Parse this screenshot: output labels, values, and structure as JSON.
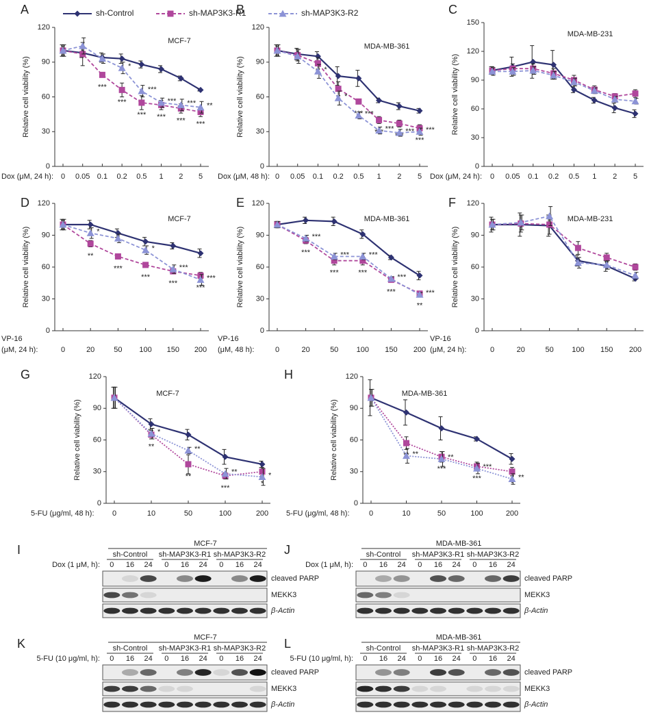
{
  "chart_data": [
    {
      "type": "line",
      "panel": "A",
      "title": "MCF-7",
      "xlabel": [
        "Dox (μM, 24 h):"
      ],
      "ylabel": "Relative cell viability (%)",
      "legend": "top",
      "categories": [
        "0",
        "0.05",
        "0.1",
        "0.2",
        "0.5",
        "1",
        "2",
        "5"
      ],
      "ylim": [
        0,
        120
      ],
      "yticks": [
        0,
        30,
        60,
        90,
        120
      ],
      "series": [
        {
          "name": "sh-Control",
          "color": "#2e3272",
          "marker": "diamond",
          "linestyle": "solid",
          "values": [
            100,
            98,
            94,
            93,
            88,
            84,
            76,
            66
          ],
          "errors": [
            5,
            4,
            4,
            4,
            3,
            3,
            2,
            1
          ]
        },
        {
          "name": "sh-MAP3K3-R1",
          "color": "#b0479c",
          "marker": "square",
          "linestyle": "dashed",
          "values": [
            100,
            97,
            79,
            66,
            55,
            53,
            50,
            47
          ],
          "errors": [
            4,
            10,
            2,
            6,
            6,
            4,
            4,
            4
          ],
          "annotations": [
            null,
            null,
            "***",
            "***",
            "***",
            "***",
            "***",
            "***"
          ]
        },
        {
          "name": "sh-MAP3K3-R2",
          "color": "#8c93d6",
          "marker": "triangle",
          "linestyle": "dashed",
          "values": [
            100,
            104,
            93,
            85,
            65,
            55,
            53,
            51
          ],
          "errors": [
            5,
            7,
            4,
            5,
            5,
            4,
            5,
            5
          ],
          "annotations": [
            null,
            null,
            null,
            "*",
            "***",
            "***",
            "***",
            "**"
          ]
        }
      ]
    },
    {
      "type": "line",
      "panel": "B",
      "title": "MDA-MB-361",
      "xlabel": [
        "Dox (μM, 48 h):"
      ],
      "ylabel": "Relative cell viability (%)",
      "categories": [
        "0",
        "0.05",
        "0.1",
        "0.2",
        "0.5",
        "1",
        "2",
        "5"
      ],
      "ylim": [
        0,
        120
      ],
      "yticks": [
        0,
        30,
        60,
        90,
        120
      ],
      "series": [
        {
          "color": "#2e3272",
          "marker": "diamond",
          "linestyle": "solid",
          "values": [
            100,
            97,
            95,
            78,
            76,
            57,
            52,
            48
          ],
          "errors": [
            5,
            5,
            4,
            8,
            7,
            2,
            3,
            2
          ]
        },
        {
          "color": "#b0479c",
          "marker": "square",
          "linestyle": "dashed",
          "values": [
            100,
            96,
            89,
            67,
            56,
            40,
            37,
            33
          ],
          "errors": [
            4,
            5,
            5,
            6,
            2,
            3,
            3,
            3
          ],
          "annotations": [
            null,
            null,
            null,
            "*",
            "***",
            "***",
            "***",
            "***"
          ]
        },
        {
          "color": "#8c93d6",
          "marker": "triangle",
          "linestyle": "dashed",
          "values": [
            100,
            95,
            82,
            59,
            44,
            31,
            29,
            30
          ],
          "errors": [
            5,
            6,
            6,
            6,
            3,
            3,
            3,
            3
          ],
          "annotations": [
            null,
            null,
            "*",
            "*",
            "***",
            "***",
            "***",
            "***"
          ]
        }
      ]
    },
    {
      "type": "line",
      "panel": "C",
      "title": "MDA-MB-231",
      "xlabel": [
        "Dox (μM, 24 h):"
      ],
      "ylabel": "Relative cell viability (%)",
      "categories": [
        "0",
        "0.05",
        "0.1",
        "0.2",
        "0.5",
        "1",
        "2",
        "5"
      ],
      "ylim": [
        0,
        150
      ],
      "yticks": [
        0,
        30,
        60,
        90,
        120,
        150
      ],
      "series": [
        {
          "color": "#2e3272",
          "marker": "diamond",
          "linestyle": "solid",
          "values": [
            100,
            104,
            109,
            106,
            80,
            69,
            61,
            55
          ],
          "errors": [
            4,
            10,
            17,
            15,
            3,
            3,
            5,
            4
          ]
        },
        {
          "color": "#b0479c",
          "marker": "square",
          "linestyle": "dashed",
          "values": [
            100,
            102,
            102,
            97,
            90,
            80,
            73,
            76
          ],
          "errors": [
            4,
            5,
            5,
            5,
            5,
            4,
            3,
            4
          ]
        },
        {
          "color": "#8c93d6",
          "marker": "triangle",
          "linestyle": "dashed",
          "values": [
            99,
            99,
            100,
            95,
            88,
            79,
            70,
            68
          ],
          "errors": [
            4,
            4,
            4,
            4,
            4,
            3,
            3,
            3
          ]
        }
      ]
    },
    {
      "type": "line",
      "panel": "D",
      "title": "MCF-7",
      "xlabel": [
        "VP-16",
        "(μM, 24 h):"
      ],
      "ylabel": "Relative cell viability (%)",
      "categories": [
        "0",
        "20",
        "50",
        "100",
        "150",
        "200"
      ],
      "ylim": [
        0,
        120
      ],
      "yticks": [
        0,
        30,
        60,
        90,
        120
      ],
      "series": [
        {
          "color": "#2e3272",
          "marker": "diamond",
          "linestyle": "solid",
          "values": [
            100,
            100,
            92,
            84,
            80,
            73
          ],
          "errors": [
            5,
            4,
            4,
            4,
            3,
            4
          ]
        },
        {
          "color": "#b0479c",
          "marker": "square",
          "linestyle": "dashed",
          "values": [
            100,
            82,
            70,
            62,
            56,
            52
          ],
          "errors": [
            4,
            3,
            2,
            2,
            2,
            3
          ],
          "annotations": [
            null,
            "**",
            "***",
            "***",
            "***",
            "***"
          ]
        },
        {
          "color": "#8c93d6",
          "marker": "triangle",
          "linestyle": "dashed",
          "values": [
            100,
            92,
            87,
            76,
            58,
            48
          ],
          "errors": [
            5,
            5,
            4,
            4,
            4,
            5
          ],
          "annotations": [
            null,
            "*",
            null,
            "*",
            "***",
            "***"
          ]
        }
      ]
    },
    {
      "type": "line",
      "panel": "E",
      "title": "MDA-MB-361",
      "xlabel": [
        "VP-16",
        "(μM, 48 h):"
      ],
      "ylabel": "Relative cell viability (%)",
      "categories": [
        "0",
        "20",
        "50",
        "100",
        "150",
        "200"
      ],
      "ylim": [
        0,
        120
      ],
      "yticks": [
        0,
        30,
        60,
        90,
        120
      ],
      "series": [
        {
          "color": "#2e3272",
          "marker": "diamond",
          "linestyle": "solid",
          "values": [
            100,
            104,
            103,
            91,
            69,
            52
          ],
          "errors": [
            3,
            3,
            4,
            4,
            2,
            4
          ]
        },
        {
          "color": "#b0479c",
          "marker": "square",
          "linestyle": "dashed",
          "values": [
            100,
            85,
            66,
            66,
            48,
            35
          ],
          "errors": [
            3,
            3,
            4,
            4,
            2,
            2
          ],
          "annotations": [
            null,
            "***",
            "***",
            "***",
            "***",
            "**"
          ]
        },
        {
          "color": "#8c93d6",
          "marker": "triangle",
          "linestyle": "dashed",
          "values": [
            100,
            87,
            70,
            70,
            49,
            34
          ],
          "errors": [
            3,
            3,
            3,
            3,
            2,
            2
          ],
          "annotations": [
            null,
            "***",
            "***",
            "***",
            "***",
            "***"
          ]
        }
      ]
    },
    {
      "type": "line",
      "panel": "F",
      "title": "MDA-MB-231",
      "xlabel": [
        "VP-16",
        "(μM, 24 h):"
      ],
      "ylabel": "Relative cell viability (%)",
      "categories": [
        "0",
        "20",
        "50",
        "100",
        "150",
        "200"
      ],
      "ylim": [
        0,
        120
      ],
      "yticks": [
        0,
        30,
        60,
        90,
        120
      ],
      "series": [
        {
          "color": "#2e3272",
          "marker": "diamond",
          "linestyle": "solid",
          "values": [
            100,
            100,
            99,
            66,
            61,
            49
          ],
          "errors": [
            7,
            11,
            10,
            5,
            5,
            2
          ]
        },
        {
          "color": "#b0479c",
          "marker": "square",
          "linestyle": "dashed",
          "values": [
            100,
            101,
            100,
            78,
            69,
            60
          ],
          "errors": [
            5,
            8,
            9,
            6,
            4,
            3
          ]
        },
        {
          "color": "#8c93d6",
          "marker": "triangle",
          "linestyle": "dashed",
          "values": [
            100,
            102,
            108,
            64,
            62,
            52
          ],
          "errors": [
            5,
            7,
            9,
            5,
            4,
            3
          ]
        }
      ]
    },
    {
      "type": "line",
      "panel": "G",
      "title": "MCF-7",
      "xlabel": [
        "5-FU (μg/ml, 48 h):"
      ],
      "ylabel": "Relative cell viability (%)",
      "categories": [
        "0",
        "10",
        "50",
        "100",
        "200"
      ],
      "ylim": [
        0,
        120
      ],
      "yticks": [
        0,
        30,
        60,
        90,
        120
      ],
      "series": [
        {
          "color": "#2e3272",
          "marker": "diamond",
          "linestyle": "solid",
          "values": [
            100,
            75,
            65,
            44,
            37
          ],
          "errors": [
            10,
            5,
            5,
            7,
            3
          ]
        },
        {
          "color": "#b0479c",
          "marker": "square",
          "linestyle": "dotted",
          "values": [
            100,
            65,
            37,
            26,
            30
          ],
          "errors": [
            10,
            4,
            9,
            3,
            4
          ],
          "annotations": [
            null,
            "**",
            "**",
            "***",
            "*"
          ]
        },
        {
          "color": "#8c93d6",
          "marker": "triangle",
          "linestyle": "dotted",
          "values": [
            100,
            66,
            50,
            28,
            25
          ],
          "errors": [
            10,
            5,
            3,
            5,
            8
          ],
          "annotations": [
            null,
            "*",
            "**",
            "**",
            "*"
          ]
        }
      ]
    },
    {
      "type": "line",
      "panel": "H",
      "title": "MDA-MB-361",
      "xlabel": [
        "5-FU (μg/ml, 48 h):"
      ],
      "ylabel": "Relative cell viability (%)",
      "categories": [
        "0",
        "10",
        "50",
        "100",
        "200"
      ],
      "ylim": [
        0,
        120
      ],
      "yticks": [
        0,
        30,
        60,
        90,
        120
      ],
      "series": [
        {
          "color": "#2e3272",
          "marker": "diamond",
          "linestyle": "solid",
          "values": [
            100,
            86,
            71,
            61,
            42
          ],
          "errors": [
            17,
            12,
            11,
            2,
            5
          ]
        },
        {
          "color": "#b0479c",
          "marker": "square",
          "linestyle": "dotted",
          "values": [
            100,
            57,
            44,
            35,
            30
          ],
          "errors": [
            8,
            6,
            5,
            4,
            4
          ],
          "annotations": [
            null,
            "**",
            "***",
            "***",
            "*"
          ]
        },
        {
          "color": "#8c93d6",
          "marker": "triangle",
          "linestyle": "dotted",
          "values": [
            100,
            45,
            42,
            33,
            23
          ],
          "errors": [
            8,
            7,
            7,
            5,
            5
          ],
          "annotations": [
            null,
            "**",
            "**",
            "***",
            "**"
          ]
        }
      ]
    }
  ],
  "blots": [
    {
      "panel": "I",
      "cell_line": "MCF-7",
      "treatment": "Dox (1 μM, h):",
      "groups": [
        "sh-Control",
        "sh-MAP3K3-R1",
        "sh-MAP3K3-R2"
      ],
      "lanes": [
        "0",
        "16",
        "24"
      ],
      "rows": [
        "cleaved PARP",
        "MEKK3",
        "β-Actin"
      ]
    },
    {
      "panel": "J",
      "cell_line": "MDA-MB-361",
      "treatment": "Dox (1 μM, h):",
      "groups": [
        "sh-Control",
        "sh-MAP3K3-R1",
        "sh-MAP3K3-R2"
      ],
      "lanes": [
        "0",
        "16",
        "24"
      ],
      "rows": [
        "cleaved PARP",
        "MEKK3",
        "β-Actin"
      ]
    },
    {
      "panel": "K",
      "cell_line": "MCF-7",
      "treatment": "5-FU (10 μg/ml, h):",
      "groups": [
        "sh-Control",
        "sh-MAP3K3-R1",
        "sh-MAP3K3-R2"
      ],
      "lanes": [
        "0",
        "16",
        "24"
      ],
      "rows": [
        "cleaved PARP",
        "MEKK3",
        "β-Actin"
      ]
    },
    {
      "panel": "L",
      "cell_line": "MDA-MB-361",
      "treatment": "5-FU (10 μg/ml, h):",
      "groups": [
        "sh-Control",
        "sh-MAP3K3-R1",
        "sh-MAP3K3-R2"
      ],
      "lanes": [
        "0",
        "16",
        "24"
      ],
      "rows": [
        "cleaved PARP",
        "MEKK3",
        "β-Actin"
      ]
    }
  ]
}
